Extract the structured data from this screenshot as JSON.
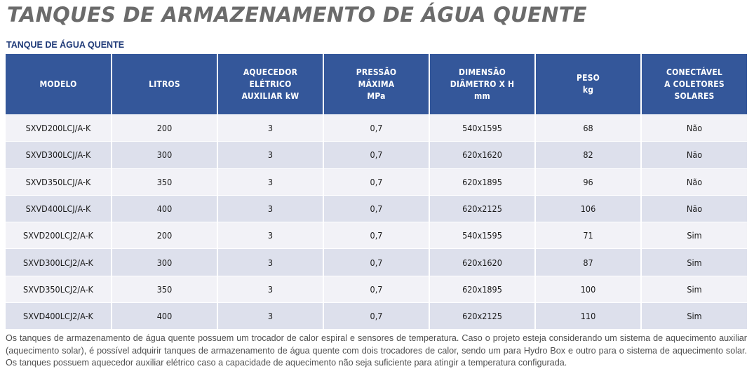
{
  "page_title": "TANQUES DE ARMAZENAMENTO DE ÁGUA QUENTE",
  "section_title": "TANQUE DE ÁGUA QUENTE",
  "table": {
    "headers": [
      [
        "MODELO"
      ],
      [
        "LITROS"
      ],
      [
        "AQUECEDOR",
        "ELÉTRICO",
        "AUXILIAR kW"
      ],
      [
        "PRESSÃO",
        "MÁXIMA",
        "MPa"
      ],
      [
        "DIMENSÃO",
        "DIÂMETRO X H",
        "mm"
      ],
      [
        "PESO",
        "kg"
      ],
      [
        "CONECTÁVEL",
        "A COLETORES",
        "SOLARES"
      ]
    ],
    "rows": [
      [
        "SXVD200LCJ/A-K",
        "200",
        "3",
        "0,7",
        "540x1595",
        "68",
        "Não"
      ],
      [
        "SXVD300LCJ/A-K",
        "300",
        "3",
        "0,7",
        "620x1620",
        "82",
        "Não"
      ],
      [
        "SXVD350LCJ/A-K",
        "350",
        "3",
        "0,7",
        "620x1895",
        "96",
        "Não"
      ],
      [
        "SXVD400LCJ/A-K",
        "400",
        "3",
        "0,7",
        "620x2125",
        "106",
        "Não"
      ],
      [
        "SXVD200LCJ2/A-K",
        "200",
        "3",
        "0,7",
        "540x1595",
        "71",
        "Sim"
      ],
      [
        "SXVD300LCJ2/A-K",
        "300",
        "3",
        "0,7",
        "620x1620",
        "87",
        "Sim"
      ],
      [
        "SXVD350LCJ2/A-K",
        "350",
        "3",
        "0,7",
        "620x1895",
        "100",
        "Sim"
      ],
      [
        "SXVD400LCJ2/A-K",
        "400",
        "3",
        "0,7",
        "620x2125",
        "110",
        "Sim"
      ]
    ]
  },
  "note": "Os tanques de armazenamento de água quente possuem um trocador de calor espiral e sensores de temperatura. Caso o projeto esteja considerando um sistema de aquecimento auxiliar (aquecimento solar), é possível adquirir tanques de armazenamento de água quente com dois trocadores de calor, sendo um para Hydro Box e outro para o sistema de aquecimento solar. Os tanques possuem aquecedor auxiliar elétrico caso a capacidade de aquecimento não seja suficiente para atingir a temperatura configurada.",
  "colors": {
    "header_bg": "#34579a",
    "row_light": "#f2f2f7",
    "row_dark": "#dde0ec",
    "title": "#6b6b6b",
    "section_title": "#1f3a78"
  }
}
